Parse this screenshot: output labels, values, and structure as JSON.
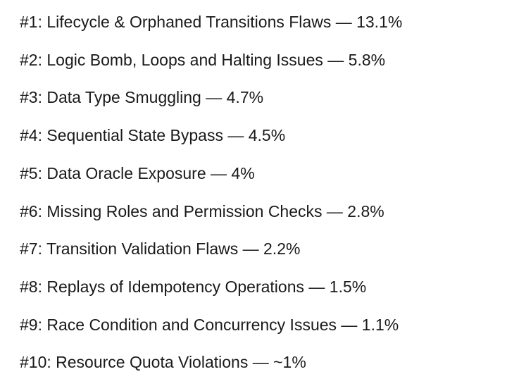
{
  "items": [
    "#1: Lifecycle & Orphaned Transitions Flaws — 13.1%",
    "#2: Logic Bomb, Loops and Halting Issues — 5.8%",
    "#3: Data Type Smuggling — 4.7%",
    "#4: Sequential State Bypass — 4.5%",
    "#5: Data Oracle Exposure — 4%",
    "#6: Missing Roles and Permission Checks — 2.8%",
    "#7: Transition Validation Flaws — 2.2%",
    "#8: Replays of Idempotency Operations — 1.5%",
    "#9: Race Condition and Concurrency Issues — 1.1%",
    "#10: Resource Quota Violations — ~1%"
  ]
}
